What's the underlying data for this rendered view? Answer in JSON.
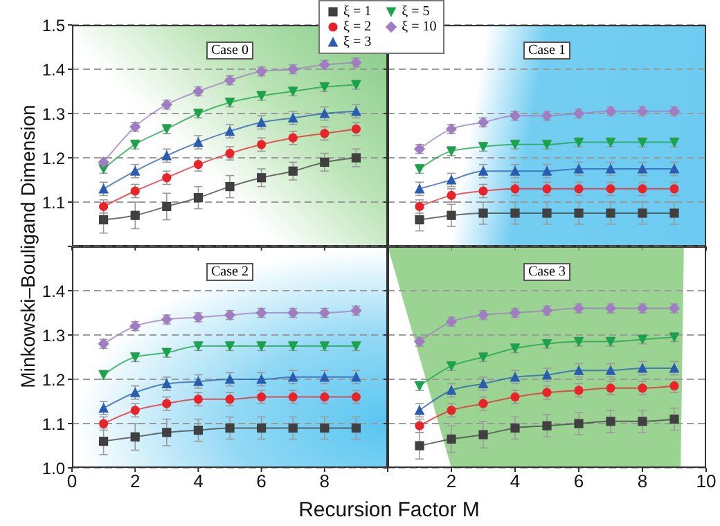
{
  "chart_data": [
    {
      "type": "line",
      "title": "Case 0",
      "ylabel": "Minkowski–Bouligand Dimension",
      "legend": "top right",
      "grid": "y",
      "tick_labels": "y",
      "line_style": "solid",
      "xlim": [
        0,
        10
      ],
      "xticks": [
        0,
        2,
        4,
        6,
        8,
        10
      ],
      "ylim": [
        1,
        1.5
      ],
      "yticks": [
        1.1,
        1.2,
        1.3,
        1.4,
        1.5
      ],
      "x": [
        1,
        2,
        3,
        4,
        5,
        6,
        7,
        8,
        9
      ],
      "series": [
        {
          "name": "ξ = 1",
          "color": "#404040",
          "marker": "square",
          "values": [
            1.06,
            1.07,
            1.09,
            1.11,
            1.135,
            1.155,
            1.17,
            1.19,
            1.2
          ],
          "errors": [
            0.03,
            0.03,
            0.03,
            0.025,
            0.025,
            0.02,
            0.02,
            0.02,
            0.02
          ]
        },
        {
          "name": "ξ = 2",
          "color": "#e8242a",
          "marker": "circle",
          "values": [
            1.09,
            1.125,
            1.155,
            1.185,
            1.21,
            1.23,
            1.245,
            1.255,
            1.265
          ],
          "errors": [
            0.015,
            0.015,
            0.015,
            0.015,
            0.015,
            0.015,
            0.015,
            0.015,
            0.015
          ]
        },
        {
          "name": "ξ = 3",
          "color": "#2a5db0",
          "marker": "triangle",
          "values": [
            1.13,
            1.17,
            1.205,
            1.235,
            1.26,
            1.28,
            1.29,
            1.3,
            1.305
          ],
          "errors": [
            0.015,
            0.015,
            0.015,
            0.015,
            0.015,
            0.015,
            0.015,
            0.015,
            0.015
          ]
        },
        {
          "name": "ξ = 5",
          "color": "#1aa34a",
          "marker": "triangle-down",
          "values": [
            1.175,
            1.23,
            1.265,
            1.3,
            1.325,
            1.34,
            1.35,
            1.36,
            1.365
          ],
          "errors": [
            0.01,
            0.01,
            0.01,
            0.01,
            0.01,
            0.01,
            0.01,
            0.01,
            0.01
          ]
        },
        {
          "name": "ξ = 10",
          "color": "#a07cc0",
          "marker": "diamond",
          "values": [
            1.19,
            1.27,
            1.32,
            1.35,
            1.375,
            1.395,
            1.4,
            1.41,
            1.415
          ],
          "errors": [
            0.01,
            0.01,
            0.01,
            0.01,
            0.01,
            0.01,
            0.01,
            0.01,
            0.01
          ]
        }
      ]
    },
    {
      "type": "line",
      "title": "Case 1",
      "grid": "y",
      "tick_labels": false,
      "line_style": "solid",
      "xlim": [
        0,
        10
      ],
      "xticks": [
        0,
        2,
        4,
        6,
        8,
        10
      ],
      "ylim": [
        1,
        1.5
      ],
      "yticks": [
        1.1,
        1.2,
        1.3,
        1.4
      ],
      "x": [
        1,
        2,
        3,
        4,
        5,
        6,
        7,
        8,
        9
      ],
      "series": [
        {
          "color": "#404040",
          "marker": "square",
          "values": [
            1.06,
            1.07,
            1.075,
            1.075,
            1.075,
            1.075,
            1.075,
            1.075,
            1.075
          ],
          "errors": [
            0.025,
            0.025,
            0.025,
            0.025,
            0.025,
            0.025,
            0.025,
            0.025,
            0.025
          ]
        },
        {
          "color": "#e8242a",
          "marker": "circle",
          "values": [
            1.09,
            1.115,
            1.125,
            1.13,
            1.13,
            1.13,
            1.13,
            1.13,
            1.13
          ],
          "errors": [
            0.015,
            0.015,
            0.015,
            0.015,
            0.015,
            0.015,
            0.015,
            0.015,
            0.015
          ]
        },
        {
          "color": "#2a5db0",
          "marker": "triangle",
          "values": [
            1.13,
            1.15,
            1.17,
            1.17,
            1.17,
            1.175,
            1.175,
            1.175,
            1.175
          ],
          "errors": [
            0.015,
            0.015,
            0.015,
            0.015,
            0.015,
            0.015,
            0.015,
            0.015,
            0.015
          ]
        },
        {
          "color": "#1aa34a",
          "marker": "triangle-down",
          "values": [
            1.175,
            1.215,
            1.225,
            1.23,
            1.23,
            1.235,
            1.235,
            1.235,
            1.235
          ],
          "errors": [
            0.01,
            0.01,
            0.01,
            0.01,
            0.01,
            0.01,
            0.01,
            0.01,
            0.01
          ]
        },
        {
          "color": "#a07cc0",
          "marker": "diamond",
          "values": [
            1.22,
            1.265,
            1.28,
            1.295,
            1.295,
            1.3,
            1.305,
            1.305,
            1.305
          ],
          "errors": [
            0.01,
            0.01,
            0.01,
            0.01,
            0.01,
            0.01,
            0.01,
            0.01,
            0.01
          ]
        }
      ]
    },
    {
      "type": "line",
      "title": "Case 2",
      "xlabel": "Recursion Factor M",
      "grid": "y",
      "line_style": "solid",
      "xlim": [
        0,
        10
      ],
      "xticks": [
        0,
        2,
        4,
        6,
        8,
        {
          "value": 10,
          "label": null
        }
      ],
      "ylim": [
        1,
        1.5
      ],
      "yticks": [
        {
          "value": 1,
          "label": "1.0"
        },
        1.1,
        1.2,
        1.3,
        1.4,
        {
          "value": 1.5,
          "label": null
        }
      ],
      "x": [
        1,
        2,
        3,
        4,
        5,
        6,
        7,
        8,
        9
      ],
      "series": [
        {
          "color": "#404040",
          "marker": "square",
          "values": [
            1.06,
            1.07,
            1.08,
            1.085,
            1.09,
            1.09,
            1.09,
            1.09,
            1.09
          ],
          "errors": [
            0.03,
            0.03,
            0.03,
            0.025,
            0.025,
            0.025,
            0.025,
            0.025,
            0.025
          ]
        },
        {
          "color": "#e8242a",
          "marker": "circle",
          "values": [
            1.1,
            1.13,
            1.145,
            1.155,
            1.155,
            1.16,
            1.16,
            1.16,
            1.16
          ],
          "errors": [
            0.015,
            0.015,
            0.015,
            0.015,
            0.015,
            0.015,
            0.015,
            0.015,
            0.015
          ]
        },
        {
          "color": "#2a5db0",
          "marker": "triangle",
          "values": [
            1.135,
            1.17,
            1.19,
            1.195,
            1.2,
            1.2,
            1.205,
            1.205,
            1.205
          ],
          "errors": [
            0.015,
            0.015,
            0.015,
            0.015,
            0.015,
            0.015,
            0.015,
            0.015,
            0.015
          ]
        },
        {
          "color": "#1aa34a",
          "marker": "triangle-down",
          "values": [
            1.21,
            1.25,
            1.26,
            1.275,
            1.275,
            1.275,
            1.275,
            1.275,
            1.275
          ],
          "errors": [
            0.01,
            0.01,
            0.01,
            0.01,
            0.01,
            0.01,
            0.01,
            0.01,
            0.01
          ]
        },
        {
          "color": "#a07cc0",
          "marker": "diamond",
          "values": [
            1.28,
            1.32,
            1.335,
            1.34,
            1.345,
            1.35,
            1.35,
            1.35,
            1.355
          ],
          "errors": [
            0.01,
            0.01,
            0.01,
            0.01,
            0.01,
            0.01,
            0.01,
            0.01,
            0.01
          ]
        }
      ]
    },
    {
      "type": "line",
      "title": "Case 3",
      "grid": "y",
      "tick_labels": "x",
      "line_style": "solid",
      "xlim": [
        0,
        10
      ],
      "xticks": [
        {
          "value": 0,
          "label": null
        },
        2,
        4,
        6,
        8,
        10
      ],
      "ylim": [
        1,
        1.5
      ],
      "yticks": [
        1,
        1.1,
        1.2,
        1.3,
        1.4,
        1.5
      ],
      "x": [
        1,
        2,
        3,
        4,
        5,
        6,
        7,
        8,
        9
      ],
      "series": [
        {
          "color": "#404040",
          "marker": "square",
          "values": [
            1.05,
            1.065,
            1.075,
            1.09,
            1.095,
            1.1,
            1.105,
            1.105,
            1.11
          ],
          "errors": [
            0.03,
            0.03,
            0.03,
            0.025,
            0.025,
            0.025,
            0.025,
            0.025,
            0.025
          ]
        },
        {
          "color": "#e8242a",
          "marker": "circle",
          "values": [
            1.095,
            1.13,
            1.145,
            1.16,
            1.17,
            1.175,
            1.18,
            1.18,
            1.185
          ],
          "errors": [
            0.015,
            0.015,
            0.015,
            0.015,
            0.015,
            0.015,
            0.015,
            0.015,
            0.015
          ]
        },
        {
          "color": "#2a5db0",
          "marker": "triangle",
          "values": [
            1.13,
            1.175,
            1.19,
            1.205,
            1.21,
            1.22,
            1.22,
            1.225,
            1.225
          ],
          "errors": [
            0.015,
            0.015,
            0.015,
            0.015,
            0.015,
            0.015,
            0.015,
            0.015,
            0.015
          ]
        },
        {
          "color": "#1aa34a",
          "marker": "triangle-down",
          "values": [
            1.185,
            1.23,
            1.25,
            1.27,
            1.28,
            1.285,
            1.285,
            1.29,
            1.295
          ],
          "errors": [
            0.01,
            0.01,
            0.01,
            0.01,
            0.01,
            0.01,
            0.01,
            0.01,
            0.01
          ]
        },
        {
          "color": "#a07cc0",
          "marker": "diamond",
          "values": [
            1.285,
            1.33,
            1.345,
            1.35,
            1.355,
            1.36,
            1.36,
            1.36,
            1.36
          ],
          "errors": [
            0.01,
            0.01,
            0.01,
            0.01,
            0.01,
            0.01,
            0.01,
            0.01,
            0.01
          ]
        }
      ]
    }
  ]
}
